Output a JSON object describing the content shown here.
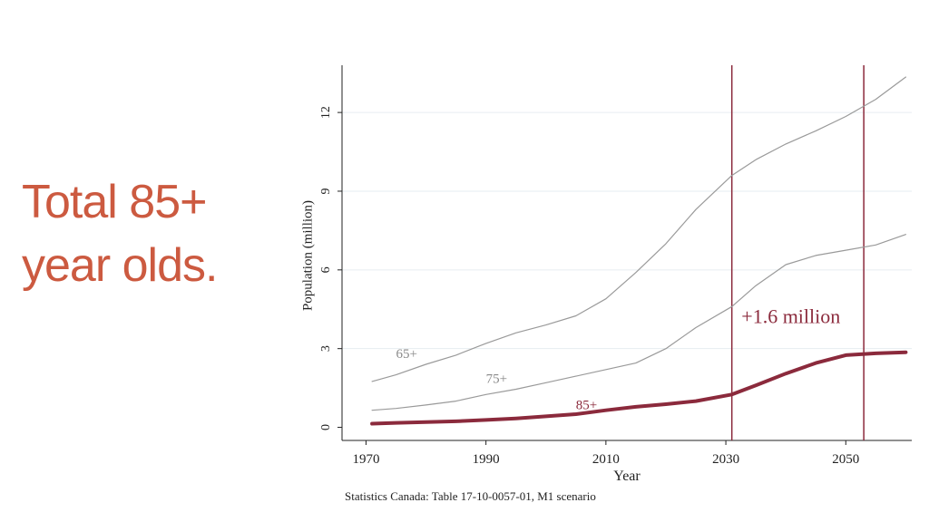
{
  "headline": {
    "line1": "Total 85+",
    "line2": "year olds."
  },
  "source": "Statistics Canada: Table 17-10-0057-01, M1 scenario",
  "chart_data": {
    "type": "line",
    "title": "",
    "xlabel": "Year",
    "ylabel": "Population (million)",
    "xlim": [
      1970,
      2060
    ],
    "ylim": [
      0,
      13.5
    ],
    "xticks": [
      1970,
      1990,
      2010,
      2030,
      2050
    ],
    "yticks": [
      0,
      3,
      6,
      9,
      12
    ],
    "grid": true,
    "series": [
      {
        "name": "65+",
        "color": "#9a9a9a",
        "x": [
          1971,
          1975,
          1980,
          1985,
          1990,
          1995,
          2000,
          2005,
          2010,
          2015,
          2020,
          2025,
          2031,
          2035,
          2040,
          2045,
          2050,
          2055,
          2060
        ],
        "y": [
          1.75,
          2.0,
          2.4,
          2.75,
          3.2,
          3.6,
          3.9,
          4.25,
          4.9,
          5.9,
          7.0,
          8.3,
          9.6,
          10.2,
          10.8,
          11.3,
          11.85,
          12.5,
          13.35
        ]
      },
      {
        "name": "75+",
        "color": "#9a9a9a",
        "x": [
          1971,
          1975,
          1980,
          1985,
          1990,
          1995,
          2000,
          2005,
          2010,
          2015,
          2020,
          2025,
          2031,
          2035,
          2040,
          2045,
          2050,
          2055,
          2060
        ],
        "y": [
          0.65,
          0.72,
          0.85,
          1.0,
          1.25,
          1.45,
          1.7,
          1.95,
          2.2,
          2.45,
          3.0,
          3.8,
          4.6,
          5.4,
          6.2,
          6.55,
          6.75,
          6.95,
          7.35
        ]
      },
      {
        "name": "85+",
        "color": "#8b2a3c",
        "x": [
          1971,
          1975,
          1980,
          1985,
          1990,
          1995,
          2000,
          2005,
          2010,
          2015,
          2020,
          2025,
          2031,
          2035,
          2040,
          2045,
          2050,
          2055,
          2060
        ],
        "y": [
          0.14,
          0.17,
          0.2,
          0.23,
          0.28,
          0.34,
          0.42,
          0.5,
          0.65,
          0.78,
          0.88,
          1.0,
          1.25,
          1.6,
          2.05,
          2.45,
          2.75,
          2.82,
          2.86
        ]
      }
    ],
    "series_labels": [
      {
        "text": "65+",
        "x": 1975,
        "y": 2.65
      },
      {
        "text": "75+",
        "x": 1990,
        "y": 1.7
      },
      {
        "text": "85+",
        "x": 2005,
        "y": 0.7
      }
    ],
    "vlines": [
      2031,
      2053
    ],
    "annotation": {
      "text": "+1.6 million",
      "x": 2032,
      "y": 3.9
    },
    "colors": {
      "headline": "#cc5a40",
      "accent": "#8b2a3c",
      "gray": "#9a9a9a",
      "grid": "#e6edf0"
    }
  }
}
